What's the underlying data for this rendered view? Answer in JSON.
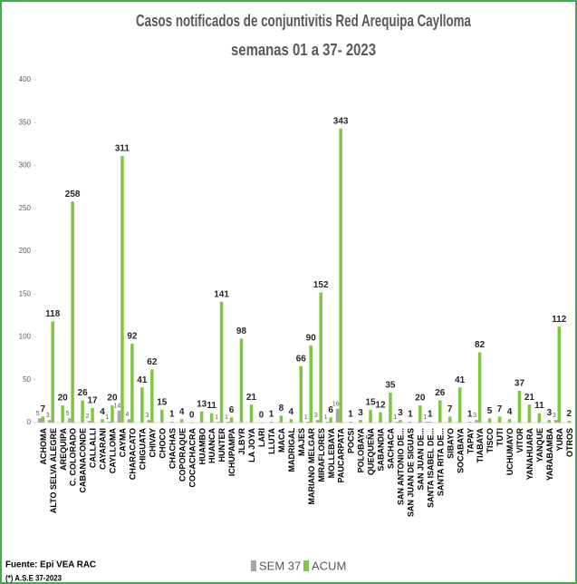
{
  "chart_data": {
    "type": "bar",
    "title": "Casos notificados de conjuntivitis Red Arequipa Caylloma",
    "subtitle": "semanas 01 a 37- 2023",
    "categories": [
      "ACHOMA",
      "ALTO SELVA ALEGRE",
      "AREQUIPA",
      "C. COLORADO",
      "CABANACONDE",
      "CALLALLI",
      "CAYARANI",
      "CAYLLOMA",
      "CAYMA",
      "CHARACATO",
      "CHIGUATA",
      "CHIVAY",
      "CHOCO",
      "CHACHAS",
      "COPORAQUE",
      "COCACHACRA",
      "HUAMBO",
      "HUANCA",
      "HUNTER",
      "ICHUPAMPA",
      "JLBYR",
      "LA JOYA",
      "LARI",
      "LLUTA",
      "MACA",
      "MADRIGAL",
      "MAJES",
      "MARIANO MELGAR",
      "MIRAFLORES",
      "MOLLEBAYA",
      "PAUCARPATA",
      "POCSI",
      "POLOBAYA",
      "QUEQUEÑA",
      "SABANDIA",
      "SACHACA",
      "SAN ANTONIO DE...",
      "SAN JUAN DE SIGUAS",
      "SAN JUAN DE...",
      "SANTA ISABEL DE...",
      "SANTA RITA DE...",
      "SIBAYO",
      "SOCABAYA",
      "TAPAY",
      "TIABAYA",
      "TISCO",
      "TUTI",
      "UCHUMAYO",
      "VITOR",
      "YANAHUARA",
      "YANQUE",
      "YARABAMBA",
      "YURA",
      "OTROS"
    ],
    "series": [
      {
        "name": "SEM 37",
        "color": "#a6a6a6",
        "values": [
          5,
          3,
          null,
          5,
          null,
          2,
          null,
          1,
          14,
          4,
          null,
          3,
          null,
          null,
          null,
          null,
          null,
          null,
          1,
          1,
          null,
          null,
          null,
          null,
          null,
          null,
          null,
          1,
          3,
          1,
          16,
          null,
          null,
          null,
          null,
          null,
          1,
          null,
          null,
          1,
          null,
          null,
          null,
          null,
          3,
          null,
          null,
          null,
          null,
          null,
          null,
          null,
          3,
          null
        ]
      },
      {
        "name": "ACUM",
        "color": "#7dc741",
        "values": [
          7,
          118,
          20,
          258,
          26,
          17,
          4,
          20,
          311,
          92,
          41,
          62,
          15,
          1,
          4,
          0,
          13,
          11,
          141,
          6,
          98,
          21,
          0,
          1,
          8,
          4,
          66,
          90,
          152,
          6,
          343,
          1,
          3,
          15,
          12,
          35,
          3,
          1,
          20,
          1,
          26,
          7,
          41,
          1,
          82,
          5,
          7,
          4,
          37,
          21,
          11,
          3,
          112,
          2
        ]
      }
    ],
    "ylim": [
      0,
      400
    ],
    "yticks": [
      0,
      50,
      100,
      150,
      200,
      250,
      300,
      350,
      400
    ],
    "source": "Fuente: Epi VEA RAC",
    "note": "(*) A.S.E 37-2023"
  }
}
